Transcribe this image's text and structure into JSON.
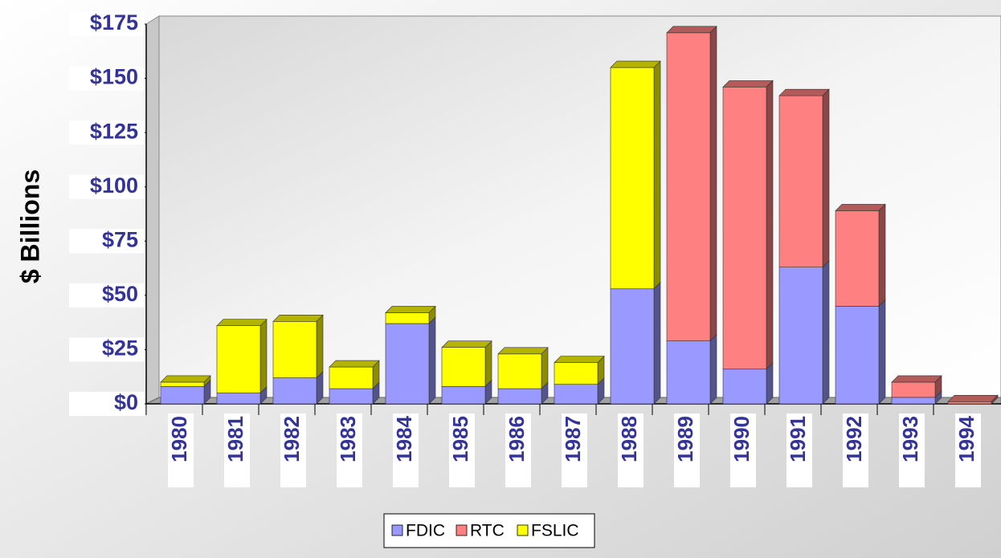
{
  "chart_data": {
    "type": "stacked_bar_3d",
    "ylabel": "$ Billions",
    "categories": [
      "1980",
      "1981",
      "1982",
      "1983",
      "1984",
      "1985",
      "1986",
      "1987",
      "1988",
      "1989",
      "1990",
      "1991",
      "1992",
      "1993",
      "1994"
    ],
    "series": [
      {
        "name": "FDIC",
        "color": "#9999ff",
        "values": [
          8,
          5,
          12,
          7,
          37,
          8,
          7,
          9,
          53,
          29,
          16,
          63,
          45,
          3,
          0
        ]
      },
      {
        "name": "RTC",
        "color": "#ff8080",
        "values": [
          0,
          0,
          0,
          0,
          0,
          0,
          0,
          0,
          0,
          142,
          130,
          79,
          44,
          7,
          1
        ]
      },
      {
        "name": "FSLIC",
        "color": "#ffff00",
        "values": [
          2,
          31,
          26,
          10,
          5,
          18,
          16,
          10,
          102,
          0,
          0,
          0,
          0,
          0,
          0
        ]
      }
    ],
    "ylim": [
      0,
      175
    ],
    "yticks": [
      {
        "value": 0,
        "label": "$0"
      },
      {
        "value": 25,
        "label": "$25"
      },
      {
        "value": 50,
        "label": "$50"
      },
      {
        "value": 75,
        "label": "$75"
      },
      {
        "value": 100,
        "label": "$100"
      },
      {
        "value": 125,
        "label": "$125"
      },
      {
        "value": 150,
        "label": "$150"
      },
      {
        "value": 175,
        "label": "$175"
      }
    ],
    "legend": "bottom"
  }
}
